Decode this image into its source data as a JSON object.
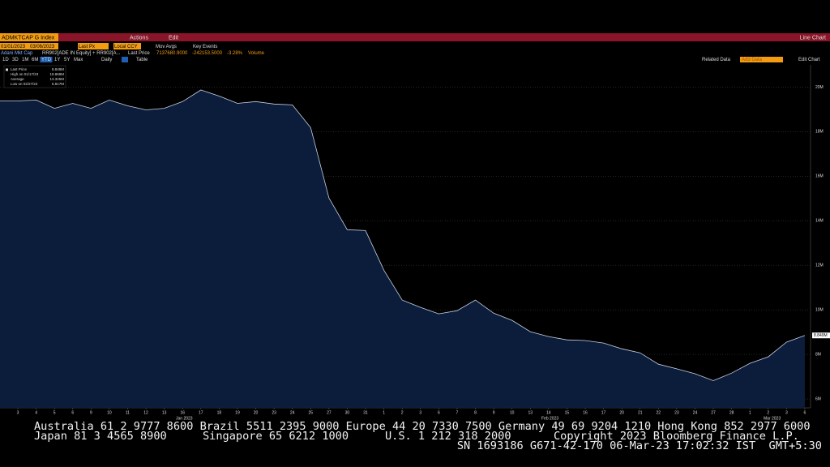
{
  "toolbar": {
    "security": "ADMKTCAP G Index",
    "actions": "Actions",
    "edit": "Edit",
    "view": "Line Chart",
    "start_date": "01/01/2023",
    "end_date": "03/06/2023",
    "field": "Last Px",
    "currency": "Local CCY",
    "mov_avgs": "Mov Avgs",
    "key_events": "Key Events",
    "series_name": "Adani Mkt Cap",
    "formula": "RR902[ADE IN Equity] + RR902[A...",
    "last_price_label": "Last Price",
    "last_price": "7137680.9000",
    "change": "-242153.5000",
    "change_pct": "-3.28%",
    "volume": "Volume",
    "periods": [
      "1D",
      "3D",
      "1M",
      "6M",
      "YTD",
      "1Y",
      "5Y",
      "Max"
    ],
    "frequency": "Daily",
    "table": "Table",
    "related_data": "Related Data",
    "add_data": "Add Data",
    "edit_chart": "Edit Chart"
  },
  "chart_data": {
    "type": "area",
    "legend": [
      "Last Price",
      "8.849M",
      "High on 01/17/23",
      "19.868M",
      "Average",
      "13.325M",
      "Low on 02/27/23",
      "6.817M"
    ],
    "last_tag": "8.849M",
    "months": [
      "Jan 2023",
      "Feb 2023",
      "Mar 2023"
    ],
    "categories": [
      "3",
      "4",
      "5",
      "6",
      "9",
      "10",
      "11",
      "12",
      "13",
      "16",
      "17",
      "18",
      "19",
      "20",
      "23",
      "24",
      "25",
      "27",
      "30",
      "31",
      "1",
      "2",
      "3",
      "6",
      "7",
      "8",
      "9",
      "10",
      "13",
      "14",
      "15",
      "16",
      "17",
      "20",
      "21",
      "22",
      "23",
      "24",
      "27",
      "28",
      "1",
      "2",
      "3",
      "6"
    ],
    "series": [
      {
        "name": "Last Price",
        "color": "#c8d0e0",
        "fill": "#0c1d3c",
        "values": [
          19.38,
          19.42,
          19.05,
          19.27,
          19.05,
          19.42,
          19.16,
          18.98,
          19.05,
          19.35,
          19.87,
          19.6,
          19.27,
          19.35,
          19.24,
          19.2,
          18.18,
          15.02,
          13.6,
          13.56,
          11.78,
          10.44,
          10.11,
          9.82,
          9.96,
          10.44,
          9.85,
          9.53,
          9.02,
          8.8,
          8.65,
          8.62,
          8.51,
          8.25,
          8.07,
          7.56,
          7.35,
          7.13,
          6.82,
          7.16,
          7.6,
          7.89,
          8.55,
          8.85
        ]
      }
    ],
    "ylim": [
      5.6,
      21
    ],
    "yticks": [
      {
        "value": 6,
        "label": "6M"
      },
      {
        "value": 8,
        "label": "8M"
      },
      {
        "value": 10,
        "label": "10M"
      },
      {
        "value": 12,
        "label": "12M"
      },
      {
        "value": 14,
        "label": "14M"
      },
      {
        "value": 16,
        "label": "16M"
      },
      {
        "value": 18,
        "label": "18M"
      },
      {
        "value": 20,
        "label": "20M"
      }
    ],
    "grid": true
  },
  "footer": {
    "line1": "Australia 61 2 9777 8600 Brazil 5511 2395 9000 Europe 44 20 7330 7500 Germany 49 69 9204 1210 Hong Kong 852 2977 6000",
    "japan": "Japan 81 3 4565 8900",
    "singapore": "Singapore 65 6212 1000",
    "us": "U.S. 1 212 318 2000",
    "copyright": "Copyright 2023 Bloomberg Finance L.P.",
    "session": "SN 1693186 G671-42-170 06-Mar-23 17:02:32 IST  GMT+5:30"
  }
}
